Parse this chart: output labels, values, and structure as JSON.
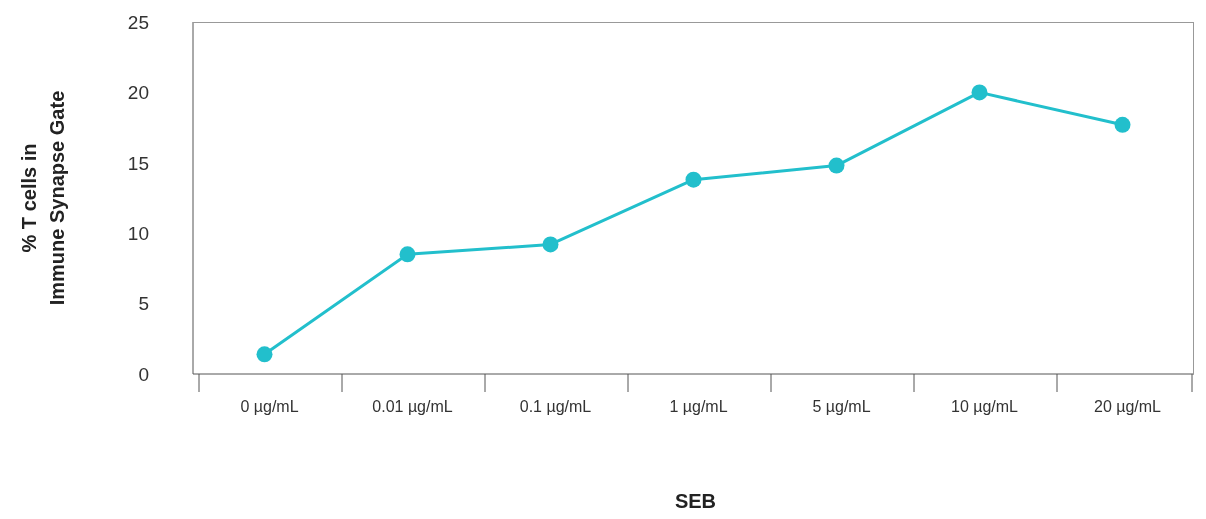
{
  "chart_data": {
    "type": "line",
    "xlabel": "SEB",
    "ylabel": "% T cells in Immune Synapse Gate",
    "categories": [
      "0 µg/mL",
      "0.01 µg/mL",
      "0.1 µg/mL",
      "1 µg/mL",
      "5 µg/mL",
      "10 µg/mL",
      "20 µg/mL"
    ],
    "series": [
      {
        "color": "#22bfcc",
        "values": [
          1.4,
          8.5,
          9.2,
          13.8,
          14.8,
          20.0,
          17.7
        ]
      }
    ],
    "ylim": [
      0,
      25
    ],
    "yticks": [
      0,
      5,
      10,
      15,
      20,
      25
    ],
    "marker": "circle",
    "line_style": "solid"
  }
}
